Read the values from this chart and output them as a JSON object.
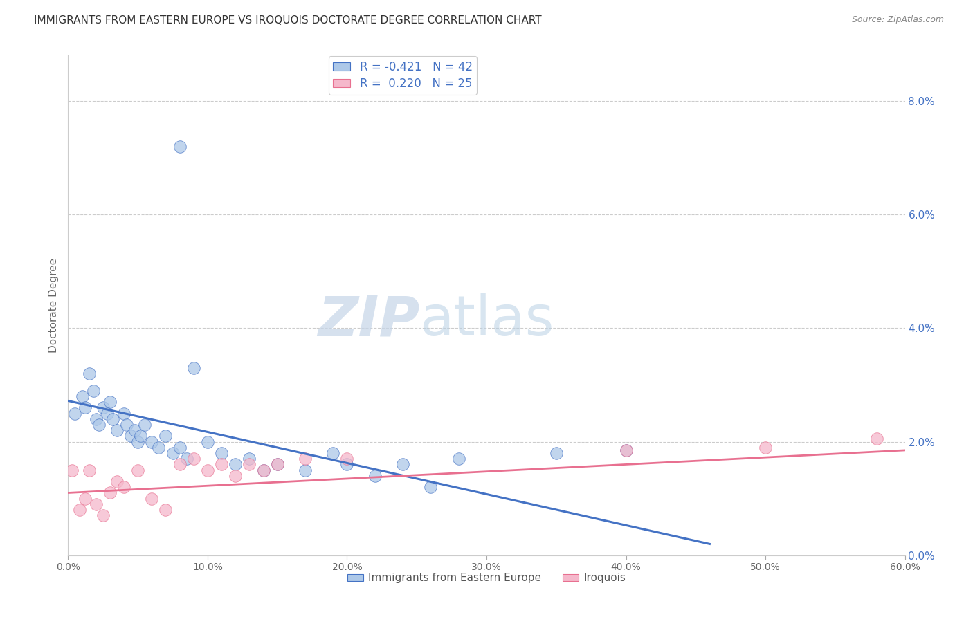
{
  "title": "IMMIGRANTS FROM EASTERN EUROPE VS IROQUOIS DOCTORATE DEGREE CORRELATION CHART",
  "source": "Source: ZipAtlas.com",
  "ylabel": "Doctorate Degree",
  "right_ytick_vals": [
    0.0,
    2.0,
    4.0,
    6.0,
    8.0
  ],
  "legend1_r": "-0.421",
  "legend1_n": "42",
  "legend2_r": "0.220",
  "legend2_n": "25",
  "legend_label1": "Immigrants from Eastern Europe",
  "legend_label2": "Iroquois",
  "blue_color": "#adc8e8",
  "pink_color": "#f5b8cb",
  "blue_line_color": "#4472c4",
  "pink_line_color": "#e87090",
  "watermark_zip": "ZIP",
  "watermark_atlas": "atlas",
  "blue_scatter_x": [
    0.5,
    1.0,
    1.2,
    1.5,
    1.8,
    2.0,
    2.2,
    2.5,
    2.8,
    3.0,
    3.2,
    3.5,
    4.0,
    4.2,
    4.5,
    4.8,
    5.0,
    5.2,
    5.5,
    6.0,
    6.5,
    7.0,
    7.5,
    8.0,
    8.5,
    9.0,
    10.0,
    11.0,
    12.0,
    13.0,
    14.0,
    15.0,
    17.0,
    19.0,
    20.0,
    22.0,
    24.0,
    26.0,
    28.0,
    35.0,
    40.0,
    8.0
  ],
  "blue_scatter_y": [
    2.5,
    2.8,
    2.6,
    3.2,
    2.9,
    2.4,
    2.3,
    2.6,
    2.5,
    2.7,
    2.4,
    2.2,
    2.5,
    2.3,
    2.1,
    2.2,
    2.0,
    2.1,
    2.3,
    2.0,
    1.9,
    2.1,
    1.8,
    1.9,
    1.7,
    3.3,
    2.0,
    1.8,
    1.6,
    1.7,
    1.5,
    1.6,
    1.5,
    1.8,
    1.6,
    1.4,
    1.6,
    1.2,
    1.7,
    1.8,
    1.85,
    7.2
  ],
  "pink_scatter_x": [
    0.3,
    0.8,
    1.2,
    1.5,
    2.0,
    2.5,
    3.0,
    3.5,
    4.0,
    5.0,
    6.0,
    7.0,
    8.0,
    9.0,
    10.0,
    11.0,
    12.0,
    13.0,
    14.0,
    15.0,
    17.0,
    20.0,
    40.0,
    50.0,
    58.0
  ],
  "pink_scatter_y": [
    1.5,
    0.8,
    1.0,
    1.5,
    0.9,
    0.7,
    1.1,
    1.3,
    1.2,
    1.5,
    1.0,
    0.8,
    1.6,
    1.7,
    1.5,
    1.6,
    1.4,
    1.6,
    1.5,
    1.6,
    1.7,
    1.7,
    1.85,
    1.9,
    2.05
  ],
  "xlim": [
    0,
    60
  ],
  "ylim": [
    0,
    8.8
  ],
  "blue_trend_x": [
    0.0,
    46.0
  ],
  "blue_trend_y": [
    2.72,
    0.2
  ],
  "pink_trend_x": [
    0.0,
    60.0
  ],
  "pink_trend_y": [
    1.1,
    1.85
  ],
  "marker_size": 160,
  "dpi": 100,
  "figsize": [
    14.06,
    8.92
  ]
}
